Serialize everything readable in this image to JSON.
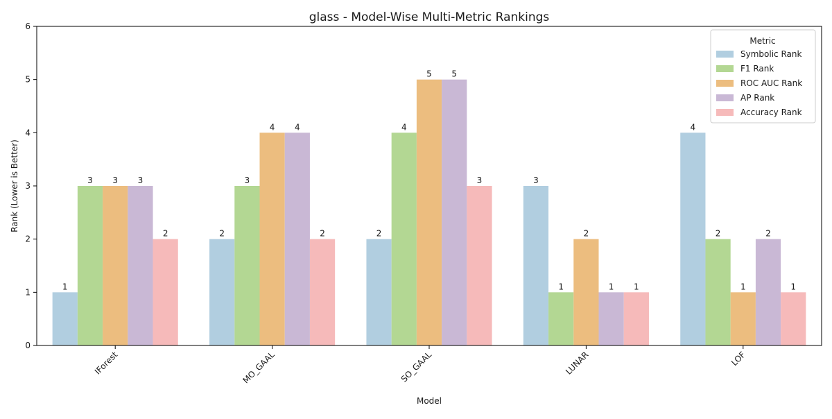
{
  "chart_data": {
    "type": "bar",
    "title": "glass - Model-Wise Multi-Metric Rankings",
    "xlabel": "Model",
    "ylabel": "Rank (Lower is Better)",
    "ylim": [
      0,
      6
    ],
    "yticks": [
      "0",
      "1",
      "2",
      "3",
      "4",
      "5",
      "6"
    ],
    "categories": [
      "IForest",
      "MO_GAAL",
      "SO_GAAL",
      "LUNAR",
      "LOF"
    ],
    "legend": {
      "title": "Metric",
      "placement": "top-right"
    },
    "series": [
      {
        "name": "Symbolic Rank",
        "color": "#b1cee0",
        "values": [
          1,
          2,
          2,
          3,
          4
        ]
      },
      {
        "name": "F1 Rank",
        "color": "#b3d793",
        "values": [
          3,
          3,
          4,
          1,
          2
        ]
      },
      {
        "name": "ROC AUC Rank",
        "color": "#ecbd7f",
        "values": [
          3,
          4,
          5,
          2,
          1
        ]
      },
      {
        "name": "AP Rank",
        "color": "#c9b8d5",
        "values": [
          3,
          4,
          5,
          1,
          2
        ]
      },
      {
        "name": "Accuracy Rank",
        "color": "#f6baba",
        "values": [
          2,
          2,
          3,
          1,
          1
        ]
      }
    ],
    "grid": false
  }
}
